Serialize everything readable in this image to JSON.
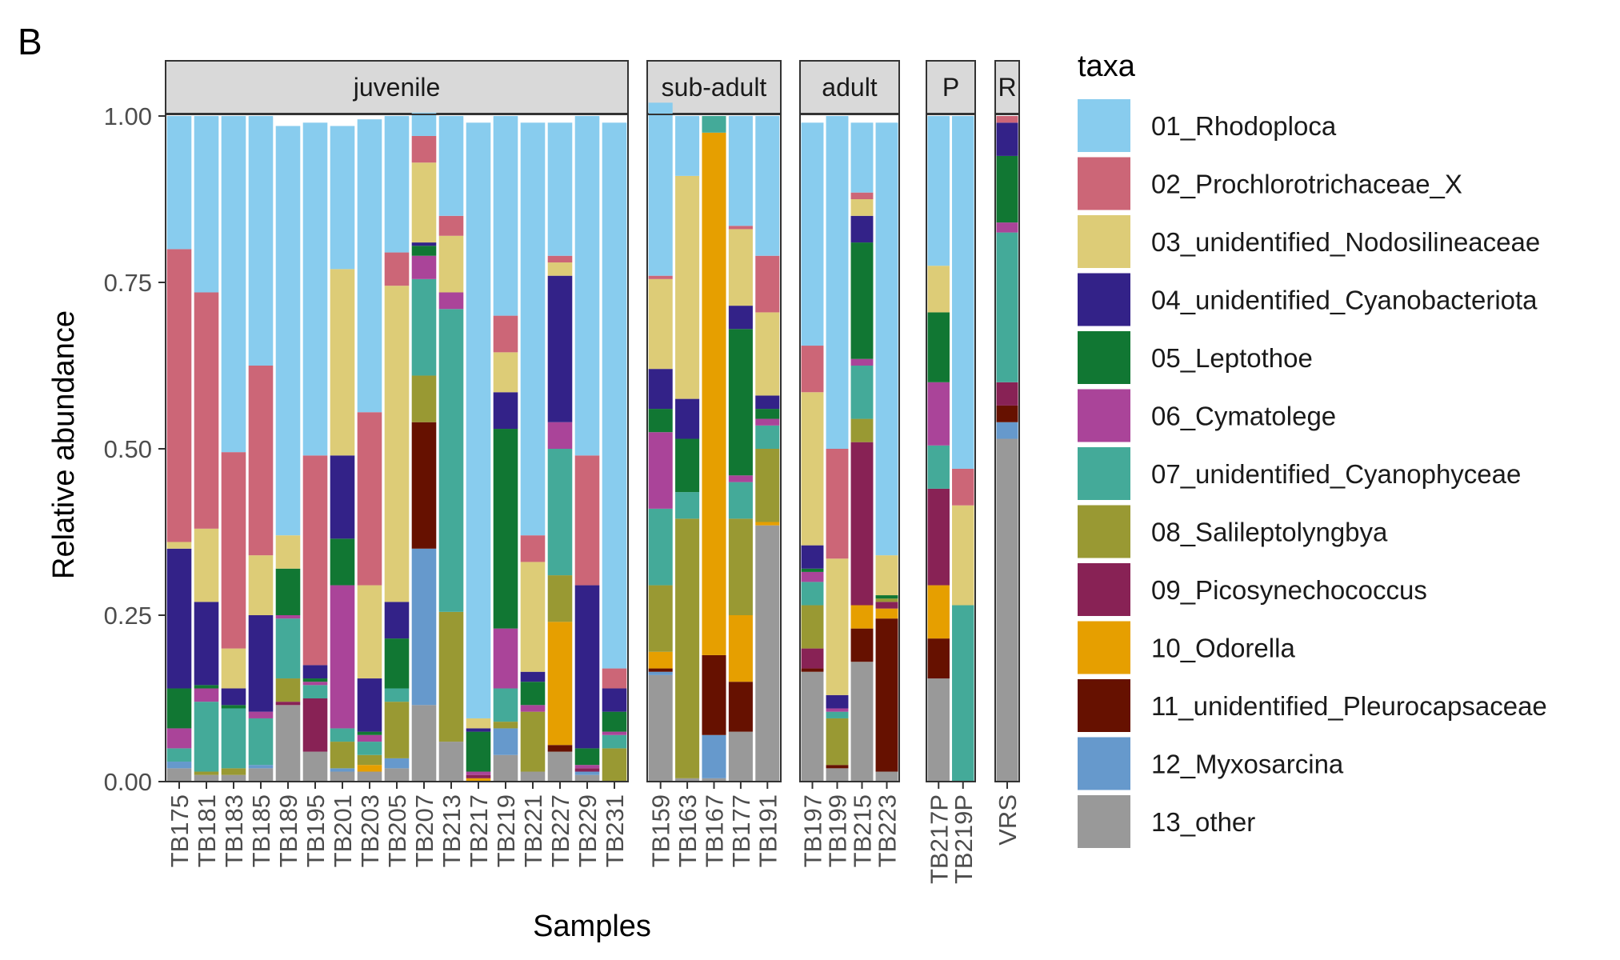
{
  "chart_data": {
    "type": "bar",
    "panel_label": "B",
    "xlabel": "Samples",
    "ylabel": "Relative abundance",
    "ylim": [
      0,
      1
    ],
    "yticks": [
      "0.00",
      "0.25",
      "0.50",
      "0.75",
      "1.00"
    ],
    "legend_title": "taxa",
    "legend_position": "right",
    "facets": [
      {
        "label": "juvenile",
        "samples": [
          "TB175",
          "TB181",
          "TB183",
          "TB185",
          "TB189",
          "TB195",
          "TB201",
          "TB203",
          "TB205",
          "TB207",
          "TB213",
          "TB217",
          "TB219",
          "TB221",
          "TB227",
          "TB229",
          "TB231"
        ]
      },
      {
        "label": "sub-adult",
        "samples": [
          "TB159",
          "TB163",
          "TB167",
          "TB177",
          "TB191"
        ]
      },
      {
        "label": "adult",
        "samples": [
          "TB197",
          "TB199",
          "TB215",
          "TB223"
        ]
      },
      {
        "label": "P",
        "samples": [
          "TB217P",
          "TB219P"
        ]
      },
      {
        "label": "R",
        "samples": [
          "VRS"
        ]
      }
    ],
    "taxa": [
      {
        "name": "01_Rhodoploca",
        "color": "#88CCEE"
      },
      {
        "name": "02_Prochlorotrichaceae_X",
        "color": "#CC6677"
      },
      {
        "name": "03_unidentified_Nodosilineaceae",
        "color": "#DDCC77"
      },
      {
        "name": "04_unidentified_Cyanobacteriota",
        "color": "#332288"
      },
      {
        "name": "05_Leptothoe",
        "color": "#117733"
      },
      {
        "name": "06_Cymatolege",
        "color": "#AA4499"
      },
      {
        "name": "07_unidentified_Cyanophyceae",
        "color": "#44AA99"
      },
      {
        "name": "08_Salileptolyngbya",
        "color": "#999933"
      },
      {
        "name": "09_Picosynechococcus",
        "color": "#882255"
      },
      {
        "name": "10_Odorella",
        "color": "#E69F00"
      },
      {
        "name": "11_unidentified_Pleurocapsaceae",
        "color": "#661100"
      },
      {
        "name": "12_Myxosarcina",
        "color": "#6699CC"
      },
      {
        "name": "13_other",
        "color": "#999999"
      }
    ],
    "values_order_note": "per-sample values listed in legend order 01..13",
    "samples": {
      "TB175": [
        0.2,
        0.44,
        0.01,
        0.21,
        0.06,
        0.03,
        0.02,
        0.0,
        0.0,
        0.0,
        0.0,
        0.01,
        0.02
      ],
      "TB181": [
        0.265,
        0.355,
        0.11,
        0.125,
        0.005,
        0.02,
        0.105,
        0.005,
        0.0,
        0.0,
        0.0,
        0.0,
        0.01
      ],
      "TB183": [
        0.505,
        0.295,
        0.06,
        0.025,
        0.005,
        0.0,
        0.09,
        0.01,
        0.0,
        0.0,
        0.0,
        0.0,
        0.01
      ],
      "TB185": [
        0.375,
        0.285,
        0.09,
        0.145,
        0.0,
        0.01,
        0.07,
        0.0,
        0.0,
        0.0,
        0.0,
        0.005,
        0.02
      ],
      "TB189": [
        0.615,
        0.0,
        0.05,
        0.0,
        0.07,
        0.005,
        0.09,
        0.035,
        0.005,
        0.0,
        0.0,
        0.0,
        0.115
      ],
      "TB195": [
        0.5,
        0.315,
        0.0,
        0.02,
        0.005,
        0.005,
        0.02,
        0.0,
        0.08,
        0.0,
        0.0,
        0.0,
        0.045
      ],
      "TB201": [
        0.215,
        0.0,
        0.28,
        0.125,
        0.07,
        0.215,
        0.02,
        0.04,
        0.0,
        0.0,
        0.0,
        0.005,
        0.015
      ],
      "TB203": [
        0.44,
        0.26,
        0.14,
        0.08,
        0.005,
        0.01,
        0.02,
        0.015,
        0.0,
        0.01,
        0.0,
        0.0,
        0.015
      ],
      "TB205": [
        0.205,
        0.05,
        0.475,
        0.055,
        0.075,
        0.0,
        0.02,
        0.085,
        0.0,
        0.0,
        0.0,
        0.015,
        0.02
      ],
      "TB207": [
        0.035,
        0.04,
        0.12,
        0.005,
        0.015,
        0.035,
        0.145,
        0.07,
        0.0,
        0.0,
        0.19,
        0.235,
        0.115
      ],
      "TB213": [
        0.15,
        0.03,
        0.085,
        0.0,
        0.0,
        0.025,
        0.455,
        0.195,
        0.0,
        0.0,
        0.0,
        0.0,
        0.06
      ],
      "TB217": [
        0.895,
        0.0,
        0.015,
        0.005,
        0.06,
        0.005,
        0.0,
        0.0,
        0.005,
        0.005,
        0.0,
        0.0,
        0.0
      ],
      "TB219": [
        0.3,
        0.055,
        0.06,
        0.055,
        0.3,
        0.09,
        0.05,
        0.01,
        0.0,
        0.0,
        0.0,
        0.04,
        0.04
      ],
      "TB221": [
        0.62,
        0.04,
        0.165,
        0.015,
        0.035,
        0.01,
        0.0,
        0.09,
        0.0,
        0.0,
        0.0,
        0.0,
        0.015
      ],
      "TB227": [
        0.2,
        0.01,
        0.02,
        0.22,
        0.0,
        0.04,
        0.19,
        0.07,
        0.0,
        0.185,
        0.01,
        0.0,
        0.045
      ],
      "TB229": [
        0.51,
        0.195,
        0.0,
        0.245,
        0.025,
        0.005,
        0.0,
        0.0,
        0.005,
        0.0,
        0.0,
        0.005,
        0.01
      ],
      "TB231": [
        0.82,
        0.03,
        0.0,
        0.035,
        0.03,
        0.005,
        0.02,
        0.05,
        0.0,
        0.0,
        0.0,
        0.0,
        0.0
      ],
      "TB159": [
        0.26,
        0.005,
        0.135,
        0.06,
        0.035,
        0.115,
        0.115,
        0.1,
        0.0,
        0.025,
        0.005,
        0.005,
        0.16
      ],
      "TB163": [
        0.09,
        0.0,
        0.335,
        0.06,
        0.08,
        0.0,
        0.04,
        0.39,
        0.0,
        0.0,
        0.0,
        0.0,
        0.005
      ],
      "TB167": [
        0.0,
        0.0,
        0.0,
        0.0,
        0.0,
        0.0,
        0.025,
        0.0,
        0.0,
        0.785,
        0.12,
        0.065,
        0.005
      ],
      "TB177": [
        0.165,
        0.005,
        0.115,
        0.035,
        0.22,
        0.01,
        0.055,
        0.145,
        0.0,
        0.1,
        0.075,
        0.0,
        0.075
      ],
      "TB191": [
        0.21,
        0.085,
        0.125,
        0.02,
        0.015,
        0.01,
        0.035,
        0.11,
        0.0,
        0.005,
        0.0,
        0.0,
        0.385
      ],
      "TB197": [
        0.335,
        0.07,
        0.23,
        0.035,
        0.005,
        0.015,
        0.035,
        0.065,
        0.03,
        0.0,
        0.005,
        0.0,
        0.165
      ],
      "TB199": [
        0.5,
        0.165,
        0.205,
        0.02,
        0.0,
        0.005,
        0.01,
        0.07,
        0.0,
        0.0,
        0.005,
        0.0,
        0.02
      ],
      "TB215": [
        0.105,
        0.01,
        0.025,
        0.04,
        0.175,
        0.01,
        0.08,
        0.035,
        0.245,
        0.035,
        0.05,
        0.0,
        0.18
      ],
      "TB223": [
        0.65,
        0.0,
        0.06,
        0.0,
        0.005,
        0.0,
        0.0,
        0.005,
        0.01,
        0.015,
        0.23,
        0.0,
        0.015
      ],
      "TB217P": [
        0.225,
        0.0,
        0.07,
        0.0,
        0.105,
        0.095,
        0.065,
        0.0,
        0.145,
        0.08,
        0.06,
        0.0,
        0.155
      ],
      "TB219P": [
        0.53,
        0.055,
        0.15,
        0.0,
        0.0,
        0.0,
        0.265,
        0.0,
        0.0,
        0.0,
        0.0,
        0.0,
        0.0
      ],
      "VRS": [
        0.0,
        0.01,
        0.0,
        0.05,
        0.1,
        0.015,
        0.225,
        0.0,
        0.035,
        0.0,
        0.025,
        0.025,
        0.515
      ]
    }
  }
}
